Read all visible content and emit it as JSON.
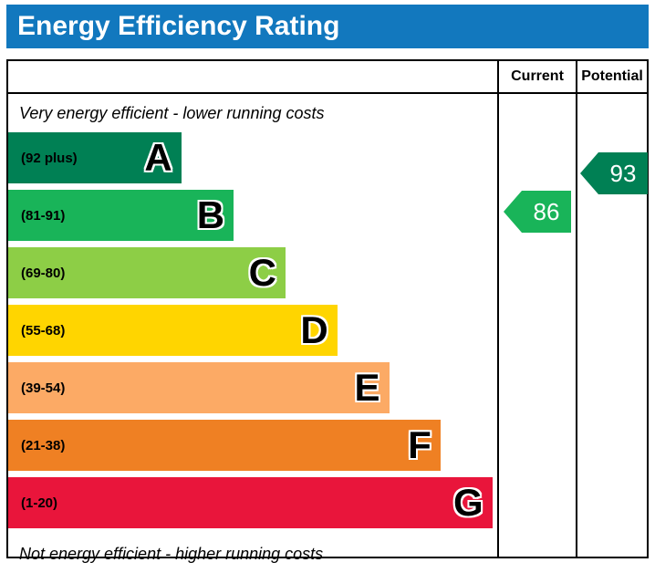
{
  "title": "Energy Efficiency Rating",
  "columns": {
    "current": "Current",
    "potential": "Potential"
  },
  "notes": {
    "top": "Very energy efficient - lower running costs",
    "bottom": "Not energy efficient - higher running costs"
  },
  "chart_data": {
    "type": "bar",
    "title": "Energy Efficiency Rating",
    "categories": [
      "A",
      "B",
      "C",
      "D",
      "E",
      "F",
      "G"
    ],
    "bands": [
      {
        "letter": "A",
        "range": "(92 plus)",
        "min": 92,
        "max": 100,
        "color": "#008054",
        "width_pct": 35.4
      },
      {
        "letter": "B",
        "range": "(81-91)",
        "min": 81,
        "max": 91,
        "color": "#19b459",
        "width_pct": 46.1
      },
      {
        "letter": "C",
        "range": "(69-80)",
        "min": 69,
        "max": 80,
        "color": "#8dce46",
        "width_pct": 56.7
      },
      {
        "letter": "D",
        "range": "(55-68)",
        "min": 55,
        "max": 68,
        "color": "#ffd500",
        "width_pct": 67.3
      },
      {
        "letter": "E",
        "range": "(39-54)",
        "min": 39,
        "max": 54,
        "color": "#fcaa65",
        "width_pct": 77.9
      },
      {
        "letter": "F",
        "range": "(21-38)",
        "min": 21,
        "max": 38,
        "color": "#ef8023",
        "width_pct": 88.4
      },
      {
        "letter": "G",
        "range": "(1-20)",
        "min": 1,
        "max": 20,
        "color": "#e9153b",
        "width_pct": 99.0
      }
    ],
    "ratings": {
      "current": {
        "value": 86,
        "band": "B",
        "color": "#19b459"
      },
      "potential": {
        "value": 93,
        "band": "A",
        "color": "#008054"
      }
    }
  }
}
